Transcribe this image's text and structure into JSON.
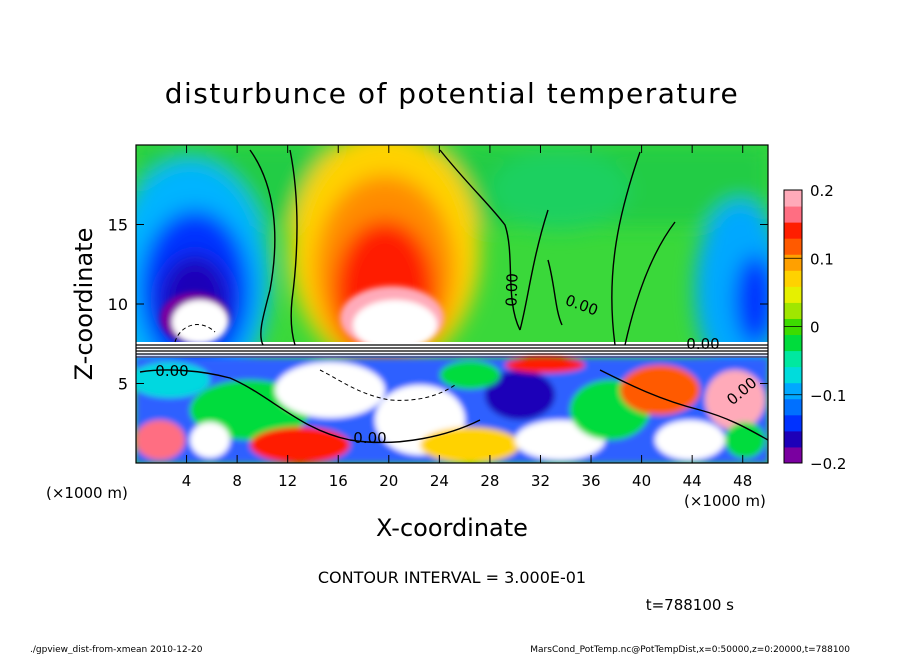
{
  "chart_data": {
    "type": "heatmap",
    "title": "disturbunce of potential temperature",
    "xlabel": "X-coordinate",
    "ylabel": "Z-coordinate",
    "x_unit": "(×1000 m)",
    "y_unit": "(×1000 m)",
    "xlim": [
      0,
      50
    ],
    "ylim": [
      0,
      20
    ],
    "x_ticks": [
      4,
      8,
      12,
      16,
      20,
      24,
      28,
      32,
      36,
      40,
      44,
      48
    ],
    "y_ticks": [
      5,
      10,
      15
    ],
    "colorbar": {
      "range": [
        -0.2,
        0.2
      ],
      "ticks": [
        0.2,
        0.1,
        0,
        -0.1,
        -0.2
      ],
      "tick_labels": [
        "0.2",
        "0.1",
        "0",
        "−0.1",
        "−0.2"
      ],
      "colors": [
        "#7a00a0",
        "#1d00b8",
        "#0032ff",
        "#0070ff",
        "#00a8ff",
        "#00dcdc",
        "#00e8a0",
        "#00dc3c",
        "#3cdc00",
        "#a0e600",
        "#e6f000",
        "#ffd200",
        "#ffa000",
        "#ff5a00",
        "#ff1e00",
        "#ff6e82",
        "#ffaab9"
      ]
    },
    "contour_labels": [
      "0.00",
      "0.00",
      "0.00",
      "0.00",
      "0.00",
      "0.00"
    ],
    "contour_interval": "CONTOUR INTERVAL = 3.000E-01",
    "time_label": "t=788100 s",
    "footer_left": "./gpview_dist-from-xmean  2010-12-20",
    "footer_right": "MarsCond_PotTemp.nc@PotTempDist,x=0:50000,z=0:20000,t=788100"
  }
}
